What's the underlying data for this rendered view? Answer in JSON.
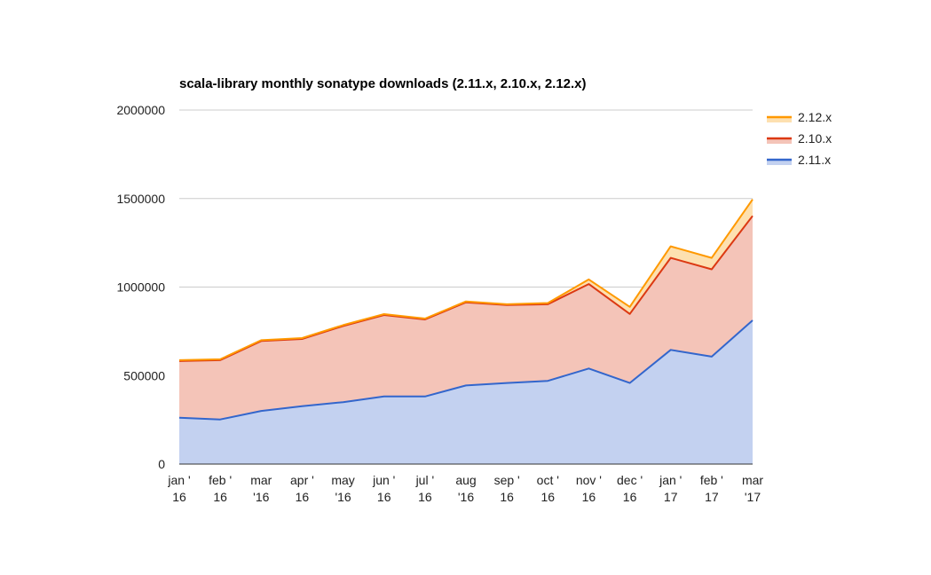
{
  "chart_data": {
    "type": "area",
    "stacked": true,
    "title": "scala-library monthly sonatype downloads (2.11.x, 2.10.x, 2.12.x)",
    "xlabel": "",
    "ylabel": "",
    "ylim": [
      0,
      2000000
    ],
    "yticks": [
      "2000000",
      "1500000",
      "1000000",
      "500000",
      "0"
    ],
    "ytick_values": [
      2000000,
      1500000,
      1000000,
      500000,
      0
    ],
    "grid": true,
    "legend_position": "right",
    "categories": [
      [
        "jan '",
        "16"
      ],
      [
        "feb '",
        "16"
      ],
      [
        "mar",
        "'16"
      ],
      [
        "apr '",
        "16"
      ],
      [
        "may",
        "'16"
      ],
      [
        "jun '",
        "16"
      ],
      [
        "jul '",
        "16"
      ],
      [
        "aug",
        "'16"
      ],
      [
        "sep '",
        "16"
      ],
      [
        "oct '",
        "16"
      ],
      [
        "nov '",
        "16"
      ],
      [
        "dec '",
        "16"
      ],
      [
        "jan '",
        "17"
      ],
      [
        "feb '",
        "17"
      ],
      [
        "mar",
        "'17"
      ]
    ],
    "series": [
      {
        "name": "2.11.x",
        "line_color": "#3366cc",
        "fill_color": "#c3d1f0",
        "values": [
          262000,
          252000,
          300000,
          327000,
          350000,
          382000,
          382000,
          444000,
          458000,
          470000,
          540000,
          458000,
          645000,
          607000,
          812000
        ]
      },
      {
        "name": "2.10.x",
        "line_color": "#dc3912",
        "fill_color": "#f4c4b8",
        "values": [
          320000,
          335000,
          395000,
          380000,
          430000,
          460000,
          435000,
          470000,
          440000,
          433000,
          477000,
          390000,
          520000,
          493000,
          590000
        ]
      },
      {
        "name": "2.12.x",
        "line_color": "#ff9900",
        "fill_color": "#fde0b0",
        "values": [
          5000,
          5000,
          5000,
          5000,
          5000,
          5000,
          5000,
          5000,
          5000,
          7000,
          26000,
          40000,
          65000,
          65000,
          93000
        ]
      }
    ]
  }
}
